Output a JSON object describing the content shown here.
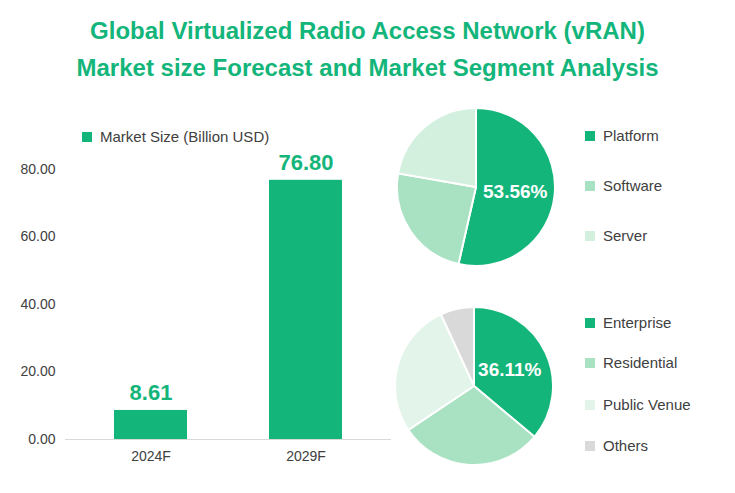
{
  "chart_data": [
    {
      "type": "bar",
      "title": "Global Virtualized Radio Access Network (vRAN) Market size Forecast and Market Segment Analysis",
      "categories": [
        "2024F",
        "2029F"
      ],
      "series": [
        {
          "name": "Market Size (Billion USD)",
          "color": "#13b57a",
          "values": [
            8.61,
            76.8
          ],
          "value_labels": [
            "8.61",
            "76.80"
          ]
        }
      ],
      "ylim": [
        0,
        80
      ],
      "yticks": [
        {
          "value": 0,
          "label": "0.00"
        },
        {
          "value": 20,
          "label": "20.00"
        },
        {
          "value": 40,
          "label": "40.00"
        },
        {
          "value": 60,
          "label": "60.00"
        },
        {
          "value": 80,
          "label": "80.00"
        }
      ],
      "grid": false,
      "data_labels": true,
      "legend": "top-left"
    },
    {
      "type": "pie",
      "categories": [
        "Platform",
        "Software",
        "Server"
      ],
      "values": [
        53.56,
        24.2,
        22.24
      ],
      "value_labels": [
        "53.56%",
        null,
        null
      ],
      "colors": [
        "#13b57a",
        "#a8e2c2",
        "#d3f0de"
      ],
      "data_labels": true,
      "legend": "right"
    },
    {
      "type": "pie",
      "categories": [
        "Enterprise",
        "Residential",
        "Public Venue",
        "Others"
      ],
      "values": [
        36.11,
        29.5,
        27.5,
        6.89
      ],
      "value_labels": [
        "36.11%",
        null,
        null,
        null
      ],
      "colors": [
        "#13b57a",
        "#a8e2c2",
        "#e3f5ea",
        "#d9d9d9"
      ],
      "data_labels": true,
      "legend": "right"
    }
  ]
}
